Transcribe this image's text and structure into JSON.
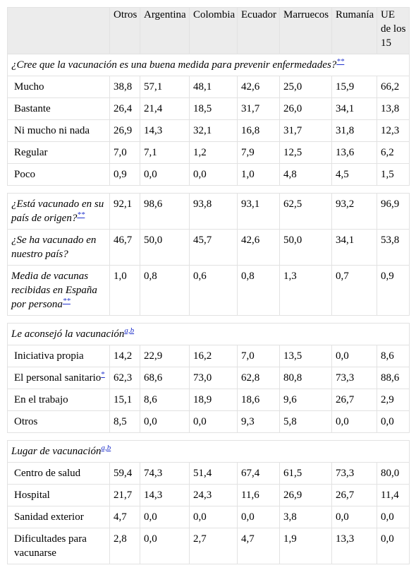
{
  "table": {
    "columns": [
      "Otros",
      "Argentina",
      "Colombia",
      "Ecuador",
      "Marruecos",
      "Rumanía",
      "UE de los 15"
    ],
    "groups": [
      {
        "heading": "¿Cree que la vacunación es una buena medida para prevenir enfermedades?",
        "note": "**",
        "rows": [
          {
            "label": "Mucho",
            "cells": [
              "38,8",
              "57,1",
              "48,1",
              "42,6",
              "25,0",
              "15,9",
              "66,2"
            ]
          },
          {
            "label": "Bastante",
            "cells": [
              "26,4",
              "21,4",
              "18,5",
              "31,7",
              "26,0",
              "34,1",
              "13,8"
            ]
          },
          {
            "label": "Ni mucho ni nada",
            "cells": [
              "26,9",
              "14,3",
              "32,1",
              "16,8",
              "31,7",
              "31,8",
              "12,3"
            ]
          },
          {
            "label": "Regular",
            "cells": [
              "7,0",
              "7,1",
              "1,2",
              "7,9",
              "12,5",
              "13,6",
              "6,2"
            ]
          },
          {
            "label": "Poco",
            "cells": [
              "0,9",
              "0,0",
              "0,0",
              "1,0",
              "4,8",
              "4,5",
              "1,5"
            ]
          }
        ]
      },
      {
        "rows": [
          {
            "label": "¿Está vacunado en su país de origen?",
            "note": "**",
            "cells": [
              "92,1",
              "98,6",
              "93,8",
              "93,1",
              "62,5",
              "93,2",
              "96,9"
            ]
          },
          {
            "label": "¿Se ha vacunado en nuestro país?",
            "cells": [
              "46,7",
              "50,0",
              "45,7",
              "42,6",
              "50,0",
              "34,1",
              "53,8"
            ]
          },
          {
            "label": "Media de vacunas recibidas en España por persona",
            "note": "**",
            "cells": [
              "1,0",
              "0,8",
              "0,6",
              "0,8",
              "1,3",
              "0,7",
              "0,9"
            ]
          }
        ]
      },
      {
        "heading": "Le aconsejó la vacunación",
        "note": "a,b",
        "rows": [
          {
            "label": "Iniciativa propia",
            "cells": [
              "14,2",
              "22,9",
              "16,2",
              "7,0",
              "13,5",
              "0,0",
              "8,6"
            ]
          },
          {
            "label": "El personal sanitario",
            "note": "*",
            "cells": [
              "62,3",
              "68,6",
              "73,0",
              "62,8",
              "80,8",
              "73,3",
              "88,6"
            ]
          },
          {
            "label": "En el trabajo",
            "cells": [
              "15,1",
              "8,6",
              "18,9",
              "18,6",
              "9,6",
              "26,7",
              "2,9"
            ]
          },
          {
            "label": "Otros",
            "cells": [
              "8,5",
              "0,0",
              "0,0",
              "9,3",
              "5,8",
              "0,0",
              "0,0"
            ]
          }
        ]
      },
      {
        "heading": "Lugar de vacunación",
        "note": "a,b",
        "rows": [
          {
            "label": "Centro de salud",
            "cells": [
              "59,4",
              "74,3",
              "51,4",
              "67,4",
              "61,5",
              "73,3",
              "80,0"
            ]
          },
          {
            "label": "Hospital",
            "cells": [
              "21,7",
              "14,3",
              "24,3",
              "11,6",
              "26,9",
              "26,7",
              "11,4"
            ]
          },
          {
            "label": "Sanidad exterior",
            "cells": [
              "4,7",
              "0,0",
              "0,0",
              "0,0",
              "3,8",
              "0,0",
              "0,0"
            ]
          },
          {
            "label": "Dificultades para vacunarse",
            "cells": [
              "2,8",
              "0,0",
              "2,7",
              "4,7",
              "1,9",
              "13,3",
              "0,0"
            ]
          }
        ]
      }
    ]
  }
}
